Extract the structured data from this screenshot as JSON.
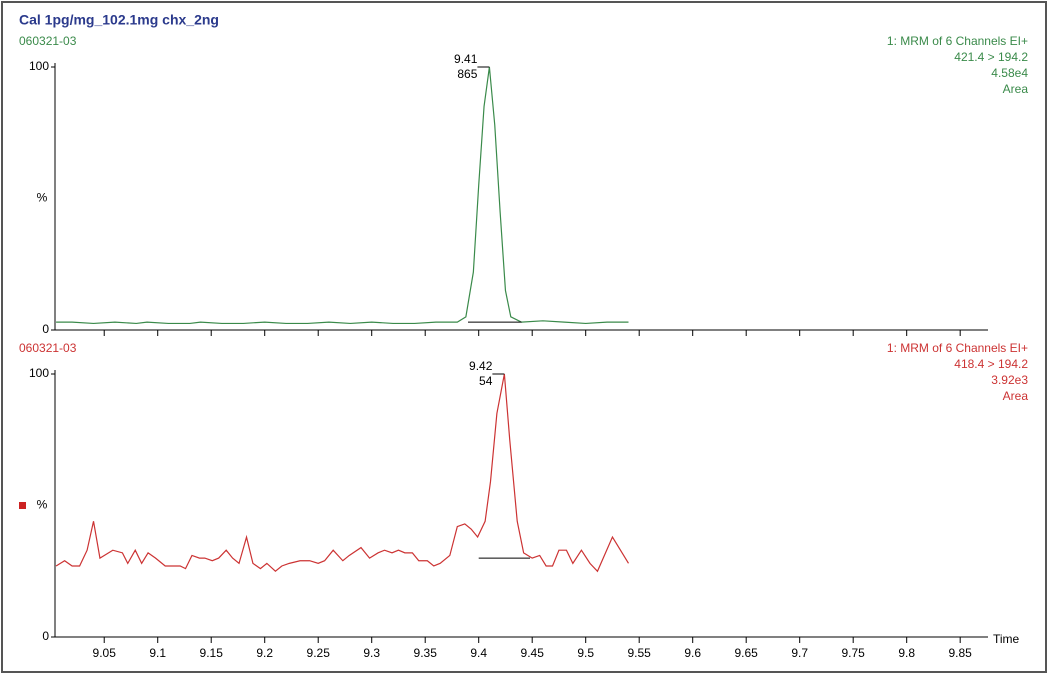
{
  "chart_data": [
    {
      "type": "line",
      "title": "Cal 1pg/mg_102.1mg chx_2ng",
      "subtitle": "060321-03",
      "info": [
        "1: MRM of 6 Channels EI+",
        "421.4 > 194.2",
        "4.58e4",
        "Area"
      ],
      "y_label": "%",
      "xlim": [
        9.004,
        9.876
      ],
      "ylim": [
        0,
        100
      ],
      "yticks": [
        0,
        100
      ],
      "peak_label": [
        "9.41",
        "865"
      ],
      "peak": {
        "x": 9.41,
        "value": 100
      },
      "baseline": {
        "x": [
          9.39,
          9.44
        ],
        "values": [
          3,
          3
        ]
      },
      "series": [
        {
          "color": "#3a8a4a",
          "x": [
            9.005,
            9.02,
            9.04,
            9.06,
            9.08,
            9.09,
            9.11,
            9.13,
            9.14,
            9.16,
            9.18,
            9.2,
            9.22,
            9.24,
            9.26,
            9.28,
            9.3,
            9.32,
            9.34,
            9.36,
            9.38,
            9.388,
            9.395,
            9.4,
            9.405,
            9.41,
            9.415,
            9.42,
            9.425,
            9.43,
            9.44,
            9.46,
            9.48,
            9.5,
            9.52,
            9.54
          ],
          "values": [
            3,
            3,
            2.5,
            3,
            2.5,
            3,
            2.5,
            2.5,
            3,
            2.5,
            2.5,
            3,
            2.5,
            2.5,
            3,
            2.5,
            3,
            2.5,
            2.5,
            3,
            3,
            5,
            22,
            55,
            85,
            100,
            78,
            45,
            15,
            5,
            3,
            3.5,
            3,
            2.5,
            3,
            3
          ]
        }
      ]
    },
    {
      "type": "line",
      "subtitle": "060321-03",
      "info": [
        "1: MRM of 6 Channels EI+",
        "418.4 > 194.2",
        "3.92e3",
        "Area"
      ],
      "y_label": "%",
      "x_label": "Time",
      "xlim": [
        9.004,
        9.876
      ],
      "ylim": [
        0,
        100
      ],
      "yticks": [
        0,
        100
      ],
      "xticks": [
        9.05,
        9.1,
        9.15,
        9.2,
        9.25,
        9.3,
        9.35,
        9.4,
        9.45,
        9.5,
        9.55,
        9.6,
        9.65,
        9.7,
        9.75,
        9.8,
        9.85
      ],
      "peak_label": [
        "9.42",
        "54"
      ],
      "peak": {
        "x": 9.424,
        "value": 100
      },
      "baseline": {
        "x": [
          9.4,
          9.448
        ],
        "values": [
          30,
          30
        ]
      },
      "series": [
        {
          "color": "#cc3333",
          "x": [
            9.005,
            9.013,
            9.02,
            9.027,
            9.034,
            9.04,
            9.046,
            9.058,
            9.067,
            9.072,
            9.079,
            9.085,
            9.091,
            9.098,
            9.107,
            9.121,
            9.126,
            9.132,
            9.139,
            9.144,
            9.151,
            9.157,
            9.164,
            9.17,
            9.176,
            9.183,
            9.189,
            9.196,
            9.202,
            9.21,
            9.216,
            9.223,
            9.233,
            9.242,
            9.25,
            9.256,
            9.264,
            9.273,
            9.279,
            9.29,
            9.298,
            9.306,
            9.312,
            9.319,
            9.325,
            9.331,
            9.338,
            9.344,
            9.352,
            9.358,
            9.364,
            9.373,
            9.38,
            9.387,
            9.393,
            9.399,
            9.406,
            9.411,
            9.417,
            9.424,
            9.429,
            9.436,
            9.442,
            9.45,
            9.457,
            9.463,
            9.469,
            9.475,
            9.482,
            9.488,
            9.496,
            9.504,
            9.511,
            9.525,
            9.54
          ],
          "values": [
            27,
            29,
            27,
            27,
            33,
            44,
            30,
            33,
            32,
            28,
            33,
            28,
            32,
            30,
            27,
            27,
            26,
            31,
            30,
            30,
            29,
            30,
            33,
            30,
            28,
            38,
            28,
            26,
            28,
            25,
            27,
            28,
            29,
            29,
            28,
            29,
            33,
            29,
            31,
            34,
            30,
            32,
            33,
            32,
            33,
            32,
            32,
            29,
            29,
            27,
            28,
            31,
            42,
            43,
            41,
            38,
            44,
            59,
            85,
            100,
            75,
            44,
            32,
            30,
            31,
            27,
            27,
            33,
            33,
            28,
            33,
            28,
            25,
            38,
            28
          ]
        }
      ]
    }
  ]
}
